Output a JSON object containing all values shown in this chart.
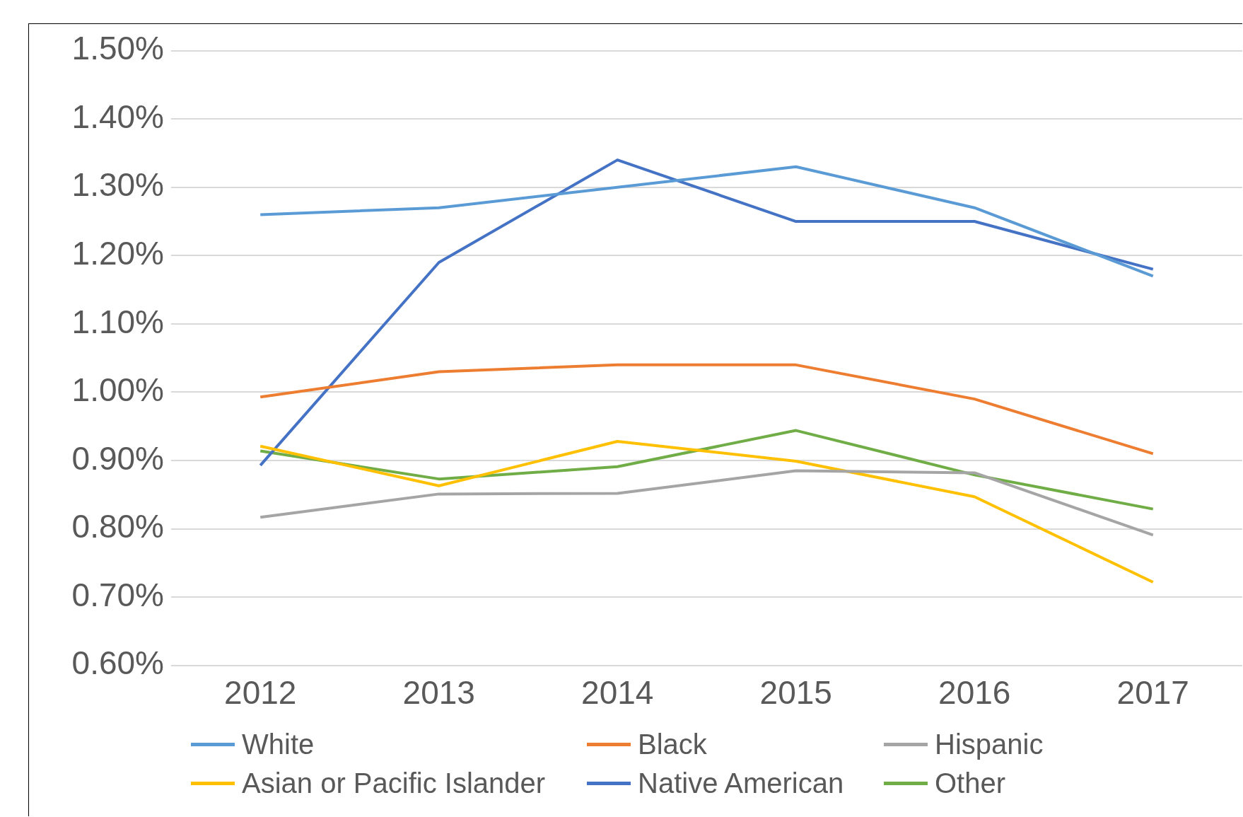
{
  "chart_data": {
    "type": "line",
    "categories": [
      "2012",
      "2013",
      "2014",
      "2015",
      "2016",
      "2017"
    ],
    "series": [
      {
        "name": "White",
        "color": "#5b9bd5",
        "values": [
          1.26,
          1.27,
          1.3,
          1.33,
          1.27,
          1.17
        ]
      },
      {
        "name": "Black",
        "color": "#ed7d31",
        "values": [
          0.993,
          1.03,
          1.04,
          1.04,
          0.99,
          0.91
        ]
      },
      {
        "name": "Hispanic",
        "color": "#a5a5a5",
        "values": [
          0.817,
          0.851,
          0.852,
          0.885,
          0.882,
          0.791
        ]
      },
      {
        "name": "Asian or Pacific Islander",
        "color": "#ffc000",
        "values": [
          0.921,
          0.863,
          0.928,
          0.899,
          0.847,
          0.722
        ]
      },
      {
        "name": "Native American",
        "color": "#4472c4",
        "values": [
          0.893,
          1.19,
          1.34,
          1.25,
          1.25,
          1.18
        ]
      },
      {
        "name": "Other",
        "color": "#70ad47",
        "values": [
          0.914,
          0.873,
          0.891,
          0.944,
          0.879,
          0.829
        ]
      }
    ],
    "ylim": [
      0.6,
      1.5
    ],
    "yticks": [
      {
        "value": 0.6,
        "label": "0.60%"
      },
      {
        "value": 0.7,
        "label": "0.70%"
      },
      {
        "value": 0.8,
        "label": "0.80%"
      },
      {
        "value": 0.9,
        "label": "0.90%"
      },
      {
        "value": 1.0,
        "label": "1.00%"
      },
      {
        "value": 1.1,
        "label": "1.10%"
      },
      {
        "value": 1.2,
        "label": "1.20%"
      },
      {
        "value": 1.3,
        "label": "1.30%"
      },
      {
        "value": 1.4,
        "label": "1.40%"
      },
      {
        "value": 1.5,
        "label": "1.50%"
      }
    ],
    "grid": "y",
    "legend": "bottom",
    "marker": "none",
    "line_style": "solid"
  }
}
